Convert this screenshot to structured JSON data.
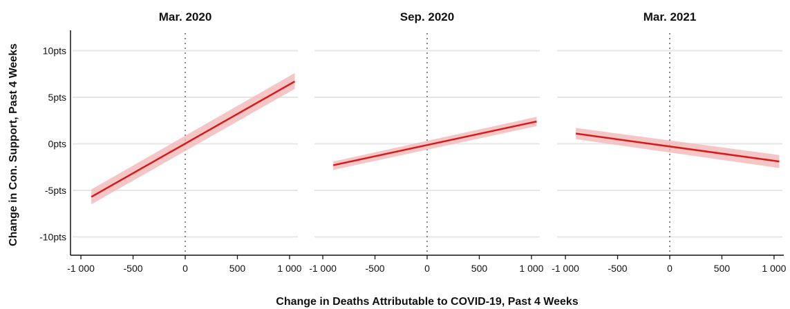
{
  "chart_data": {
    "type": "line",
    "panels": [
      {
        "title": "Mar. 2020",
        "x": [
          -900,
          1050
        ],
        "y": [
          -5.7,
          6.7
        ],
        "ci_low": [
          -6.5,
          5.9
        ],
        "ci_high": [
          -4.9,
          7.6
        ]
      },
      {
        "title": "Sep. 2020",
        "x": [
          -900,
          1050
        ],
        "y": [
          -2.3,
          2.4
        ],
        "ci_low": [
          -2.8,
          1.9
        ],
        "ci_high": [
          -1.9,
          2.9
        ]
      },
      {
        "title": "Mar. 2021",
        "x": [
          -900,
          1050
        ],
        "y": [
          1.1,
          -1.9
        ],
        "ci_low": [
          0.5,
          -2.6
        ],
        "ci_high": [
          1.7,
          -1.2
        ]
      }
    ],
    "xlabel": "Change in Deaths Attributable to COVID-19, Past 4 Weeks",
    "ylabel": "Change in Con. Support, Past 4 Weeks",
    "x_ticks": [
      -1000,
      -500,
      0,
      500,
      1000
    ],
    "x_tick_labels": [
      "-1 000",
      "-500",
      "0",
      "500",
      "1 000"
    ],
    "y_ticks": [
      -10,
      -5,
      0,
      5,
      10
    ],
    "y_tick_labels": [
      "-10pts",
      "-5pts",
      "0pts",
      "5pts",
      "10pts"
    ],
    "xlim": [
      -1080,
      1080
    ],
    "ylim": [
      -11,
      11
    ],
    "grid": true,
    "reference_line_x": 0,
    "colors": {
      "line": "#d7191c",
      "band": "#f2b8b8",
      "grid": "#e6e6e6",
      "reference": "#888888"
    }
  }
}
